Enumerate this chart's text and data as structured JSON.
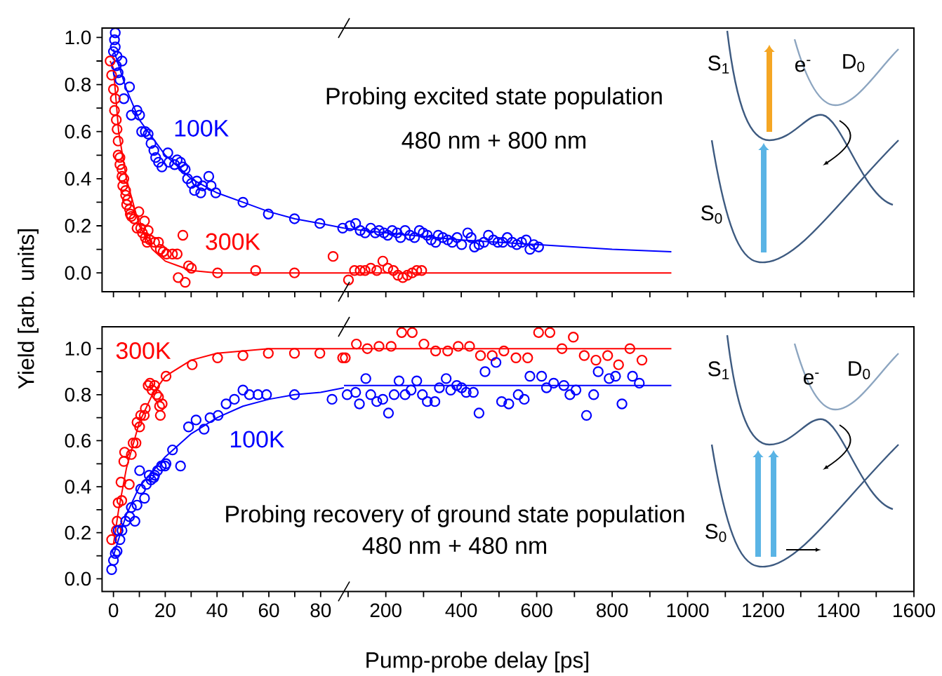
{
  "chart_data": [
    {
      "type": "scatter",
      "ylabel": "Yield [arb. units]",
      "marker": "circle",
      "xlim": [
        -4.4,
        89
      ],
      "ylim": [
        -0.08,
        1.04
      ],
      "tick_labels": "y",
      "xticks": [
        0,
        {
          "value": 10,
          "label": null
        },
        20,
        {
          "value": 30,
          "label": null
        },
        40,
        {
          "value": 50,
          "label": null
        },
        60,
        {
          "value": 70,
          "label": null
        },
        80
      ],
      "yticks": [
        {
          "value": 0,
          "label": "0.0"
        },
        {
          "value": 0.1,
          "label": null
        },
        {
          "value": 0.2,
          "label": "0.2"
        },
        {
          "value": 0.3,
          "label": null
        },
        {
          "value": 0.4,
          "label": "0.4"
        },
        {
          "value": 0.5,
          "label": null
        },
        {
          "value": 0.6,
          "label": "0.6"
        },
        {
          "value": 0.7,
          "label": null
        },
        {
          "value": 0.8,
          "label": "0.8"
        },
        {
          "value": 0.9,
          "label": null
        },
        {
          "value": 1.0,
          "label": "1.0"
        }
      ],
      "series": [
        {
          "type": "line",
          "marker": "none",
          "color": "#0000ff",
          "x": [
            0,
            5,
            10,
            20,
            30,
            40,
            50,
            60,
            70,
            80,
            89
          ],
          "values": [
            0.95,
            0.78,
            0.65,
            0.5,
            0.4,
            0.34,
            0.3,
            0.26,
            0.23,
            0.21,
            0.19
          ]
        },
        {
          "type": "line",
          "marker": "none",
          "color": "#ff0000",
          "x": [
            -1.3,
            0,
            2,
            5,
            10,
            15,
            20,
            30,
            40,
            60,
            89
          ],
          "values": [
            0.9,
            0.87,
            0.6,
            0.4,
            0.2,
            0.1,
            0.05,
            0.01,
            0,
            0,
            0
          ]
        },
        {
          "name": "100K",
          "color": "#0000ff",
          "x": [
            0.7,
            0.4,
            0.7,
            0,
            1.4,
            3.3,
            1.1,
            1.8,
            2.5,
            6.2,
            4.0,
            6.9,
            9.1,
            10.1,
            10.9,
            12.3,
            13.4,
            14.5,
            15.6,
            16.3,
            17.4,
            18.7,
            21.0,
            21.4,
            23.6,
            24.6,
            25.9,
            26.8,
            27.7,
            28.6,
            30.1,
            31.3,
            32.2,
            33.7,
            34.4,
            36.8,
            37.7,
            39.5,
            50.0,
            59.8,
            69.9,
            79.7,
            88.5
          ],
          "values": [
            1.02,
            0.99,
            0.96,
            0.94,
            0.92,
            0.9,
            0.88,
            0.85,
            0.82,
            0.79,
            0.74,
            0.67,
            0.69,
            0.67,
            0.6,
            0.6,
            0.59,
            0.55,
            0.52,
            0.49,
            0.47,
            0.45,
            0.51,
            0.47,
            0.46,
            0.48,
            0.47,
            0.45,
            0.44,
            0.4,
            0.38,
            0.35,
            0.39,
            0.34,
            0.37,
            0.41,
            0.37,
            0.34,
            0.3,
            0.25,
            0.23,
            0.21,
            0.19
          ]
        },
        {
          "name": "300K",
          "color": "#ff0000",
          "x": [
            -1.3,
            -0.7,
            0,
            0.7,
            0.4,
            1.1,
            1.4,
            1.8,
            1.8,
            2.5,
            2.5,
            3.3,
            3.3,
            4.0,
            3.6,
            4.7,
            4.7,
            5.4,
            5.1,
            6.2,
            6.5,
            6.9,
            8.0,
            9.8,
            9.1,
            10.5,
            12.0,
            11.2,
            12.3,
            13.0,
            13.4,
            14.1,
            15.9,
            17.4,
            18.1,
            19.2,
            20.5,
            22.8,
            24.6,
            26.8,
            25.0,
            27.7,
            29.0,
            30.1,
            40.2,
            54.9,
            69.9,
            84.8
          ],
          "values": [
            0.9,
            0.84,
            0.78,
            0.74,
            0.69,
            0.65,
            0.61,
            0.56,
            0.5,
            0.49,
            0.46,
            0.44,
            0.41,
            0.4,
            0.37,
            0.35,
            0.33,
            0.31,
            0.29,
            0.27,
            0.25,
            0.24,
            0.23,
            0.26,
            0.19,
            0.19,
            0.22,
            0.17,
            0.15,
            0.13,
            0.18,
            0.14,
            0.13,
            0.13,
            0.1,
            0.09,
            0.08,
            0.08,
            0.08,
            0.16,
            -0.02,
            -0.04,
            0.03,
            0.02,
            0.0,
            0.01,
            0.0,
            0.07
          ]
        }
      ]
    },
    {
      "type": "scatter",
      "marker": "circle",
      "xlim": [
        89,
        1600
      ],
      "ylim": [
        -0.08,
        1.04
      ],
      "tick_labels": false,
      "xticks": [
        {
          "value": 100,
          "label": null
        },
        200,
        {
          "value": 300,
          "label": null
        },
        400,
        {
          "value": 500,
          "label": null
        },
        600,
        {
          "value": 700,
          "label": null
        },
        800,
        {
          "value": 900,
          "label": null
        },
        1000,
        {
          "value": 1100,
          "label": null
        },
        1200,
        {
          "value": 1300,
          "label": null
        },
        1400,
        {
          "value": 1500,
          "label": null
        },
        1600
      ],
      "annotations": [
        "Probing excited state population",
        "480 nm + 800 nm",
        "S$_{1}$",
        "e$^{-}$",
        "D$_{0}$",
        "S$_{0}$"
      ],
      "series": [
        {
          "type": "line",
          "marker": "none",
          "color": "#0000ff",
          "x": [
            89,
            200,
            400,
            600,
            800,
            957
          ],
          "values": [
            0.19,
            0.17,
            0.14,
            0.12,
            0.1,
            0.09
          ]
        },
        {
          "type": "line",
          "marker": "none",
          "color": "#ff0000",
          "x": [
            89,
            957
          ],
          "values": [
            0,
            0
          ]
        },
        {
          "color": "#0000ff",
          "x": [
            105,
            120,
            132,
            145,
            160,
            172,
            182,
            195,
            205,
            217,
            230,
            239,
            251,
            264,
            276,
            289,
            299,
            310,
            320,
            332,
            339,
            351,
            364,
            376,
            389,
            401,
            417,
            426,
            435,
            447,
            460,
            472,
            485,
            497,
            510,
            522,
            535,
            547,
            560,
            572,
            582,
            592,
            605
          ],
          "values": [
            0.2,
            0.21,
            0.18,
            0.17,
            0.19,
            0.17,
            0.18,
            0.17,
            0.16,
            0.18,
            0.17,
            0.15,
            0.18,
            0.16,
            0.15,
            0.18,
            0.17,
            0.16,
            0.14,
            0.13,
            0.16,
            0.15,
            0.14,
            0.13,
            0.15,
            0.12,
            0.17,
            0.15,
            0.11,
            0.12,
            0.13,
            0.16,
            0.14,
            0.13,
            0.13,
            0.15,
            0.13,
            0.12,
            0.13,
            0.14,
            0.1,
            0.12,
            0.11
          ]
        },
        {
          "color": "#ff0000",
          "x": [
            101,
            117,
            132,
            145,
            160,
            176,
            192,
            205,
            220,
            232,
            245,
            257,
            270,
            282,
            295
          ],
          "values": [
            -0.03,
            0.01,
            0.01,
            0.01,
            0.02,
            0.01,
            0.05,
            0.02,
            0.01,
            -0.01,
            -0.02,
            -0.01,
            0.0,
            0.01,
            0.01
          ]
        }
      ]
    },
    {
      "type": "scatter",
      "marker": "circle",
      "xlim": [
        -4.4,
        89
      ],
      "ylim": [
        -0.055,
        1.095
      ],
      "xticks": [
        0,
        {
          "value": 10,
          "label": null
        },
        20,
        {
          "value": 30,
          "label": null
        },
        40,
        {
          "value": 50,
          "label": null
        },
        60,
        {
          "value": 70,
          "label": null
        },
        80
      ],
      "yticks": [
        {
          "value": 0,
          "label": "0.0"
        },
        {
          "value": 0.1,
          "label": null
        },
        {
          "value": 0.2,
          "label": "0.2"
        },
        {
          "value": 0.3,
          "label": null
        },
        {
          "value": 0.4,
          "label": "0.4"
        },
        {
          "value": 0.5,
          "label": null
        },
        {
          "value": 0.6,
          "label": "0.6"
        },
        {
          "value": 0.7,
          "label": null
        },
        {
          "value": 0.8,
          "label": "0.8"
        },
        {
          "value": 0.9,
          "label": null
        },
        {
          "value": 1.0,
          "label": "1.0"
        }
      ],
      "series": [
        {
          "type": "line",
          "marker": "none",
          "color": "#ff0000",
          "x": [
            0,
            2,
            5,
            10,
            15,
            20,
            30,
            40,
            60,
            89
          ],
          "values": [
            0.15,
            0.3,
            0.48,
            0.68,
            0.8,
            0.88,
            0.95,
            0.98,
            1.0,
            1.0
          ]
        },
        {
          "type": "line",
          "marker": "none",
          "color": "#0000ff",
          "x": [
            0,
            5,
            10,
            20,
            30,
            40,
            50,
            60,
            70,
            80,
            89
          ],
          "values": [
            0.1,
            0.28,
            0.4,
            0.53,
            0.63,
            0.7,
            0.75,
            0.78,
            0.8,
            0.81,
            0.83
          ]
        },
        {
          "name": "300K",
          "color": "#ff0000",
          "x": [
            -0.7,
            1.1,
            1.4,
            1.8,
            3.2,
            2.9,
            4.0,
            4.3,
            6.1,
            6.9,
            7.6,
            8.7,
            9.1,
            10.1,
            10.5,
            11.9,
            12.3,
            13.4,
            14.1,
            14.9,
            15.9,
            16.7,
            17.4,
            17.8,
            18.1,
            18.8,
            20.3,
            30.4,
            40.2,
            50.0,
            59.8,
            69.9,
            79.7,
            88.5
          ],
          "values": [
            0.17,
            0.21,
            0.25,
            0.33,
            0.34,
            0.42,
            0.51,
            0.55,
            0.41,
            0.54,
            0.59,
            0.59,
            0.68,
            0.66,
            0.71,
            0.71,
            0.74,
            0.84,
            0.85,
            0.82,
            0.84,
            0.8,
            0.79,
            0.75,
            0.71,
            0.76,
            0.88,
            0.93,
            0.96,
            0.97,
            0.98,
            0.98,
            0.98,
            0.96
          ]
        },
        {
          "name": "100K",
          "color": "#0000ff",
          "x": [
            -0.7,
            0,
            0.7,
            1.4,
            2.5,
            1.8,
            3.3,
            4.7,
            6.2,
            6.9,
            8.3,
            9.1,
            10.5,
            10.1,
            12.0,
            12.7,
            13.8,
            14.5,
            15.6,
            15.9,
            17.0,
            18.5,
            19.9,
            20.3,
            22.8,
            25.9,
            29.0,
            31.9,
            35.0,
            37.3,
            40.4,
            43.5,
            46.7,
            50.0,
            52.5,
            55.8,
            59.1,
            69.9,
            84.4
          ],
          "values": [
            0.04,
            0.08,
            0.11,
            0.12,
            0.17,
            0.21,
            0.21,
            0.25,
            0.27,
            0.31,
            0.25,
            0.32,
            0.39,
            0.47,
            0.35,
            0.41,
            0.45,
            0.43,
            0.44,
            0.45,
            0.47,
            0.49,
            0.49,
            0.5,
            0.56,
            0.49,
            0.66,
            0.69,
            0.65,
            0.7,
            0.71,
            0.76,
            0.78,
            0.82,
            0.8,
            0.8,
            0.8,
            0.8,
            0.78
          ]
        }
      ]
    },
    {
      "type": "scatter",
      "xlabel": "Pump-probe delay [ps]",
      "marker": "circle",
      "xlim": [
        89,
        1600
      ],
      "ylim": [
        -0.055,
        1.095
      ],
      "tick_labels": "x",
      "xticks": [
        {
          "value": 100,
          "label": null
        },
        200,
        {
          "value": 300,
          "label": null
        },
        400,
        {
          "value": 500,
          "label": null
        },
        600,
        {
          "value": 700,
          "label": null
        },
        800,
        {
          "value": 900,
          "label": null
        },
        1000,
        {
          "value": 1100,
          "label": null
        },
        1200,
        {
          "value": 1300,
          "label": null
        },
        1400,
        {
          "value": 1500,
          "label": null
        },
        1600
      ],
      "annotations": [
        "Probing recovery  of ground state population",
        "480 nm + 480 nm",
        "S$_{1}$",
        "e$^{-}$",
        "D$_{0}$",
        "S$_{0}$"
      ],
      "series": [
        {
          "type": "line",
          "marker": "none",
          "color": "#ff0000",
          "x": [
            89,
            957
          ],
          "values": [
            1.0,
            1.0
          ]
        },
        {
          "type": "line",
          "marker": "none",
          "color": "#0000ff",
          "x": [
            89,
            957
          ],
          "values": [
            0.84,
            0.84
          ]
        },
        {
          "color": "#ff0000",
          "x": [
            92.5,
            122,
            151,
            182,
            214,
            242,
            270,
            301,
            332,
            364,
            392,
            422,
            451,
            482,
            513,
            545,
            576,
            605,
            635,
            667,
            697,
            726,
            757,
            788,
            817,
            847,
            879
          ],
          "values": [
            0.96,
            1.02,
            1.0,
            1.01,
            1.01,
            1.07,
            1.07,
            1.02,
            0.99,
            0.99,
            1.01,
            1.01,
            0.97,
            0.97,
            0.99,
            0.96,
            0.96,
            1.07,
            1.07,
            1.0,
            1.05,
            0.97,
            0.95,
            0.97,
            0.93,
            1.0,
            0.95
          ]
        },
        {
          "color": "#0000ff",
          "x": [
            97.5,
            120,
            130,
            147,
            160,
            176,
            192,
            207,
            222,
            235,
            251,
            267,
            282,
            297,
            310,
            330,
            342,
            360,
            372,
            388,
            401,
            413,
            432,
            447,
            463,
            492,
            507,
            526,
            551,
            567,
            582,
            613,
            626,
            645,
            672,
            688,
            704,
            732,
            751,
            763,
            792,
            809,
            826,
            854,
            872
          ],
          "values": [
            0.8,
            0.81,
            0.76,
            0.87,
            0.8,
            0.77,
            0.78,
            0.72,
            0.8,
            0.86,
            0.8,
            0.82,
            0.86,
            0.8,
            0.77,
            0.77,
            0.83,
            0.87,
            0.82,
            0.84,
            0.83,
            0.81,
            0.81,
            0.72,
            0.9,
            0.94,
            0.77,
            0.76,
            0.8,
            0.78,
            0.88,
            0.88,
            0.83,
            0.85,
            0.84,
            0.8,
            0.82,
            0.71,
            0.8,
            0.9,
            0.87,
            0.88,
            0.76,
            0.88,
            0.85
          ]
        }
      ]
    }
  ]
}
